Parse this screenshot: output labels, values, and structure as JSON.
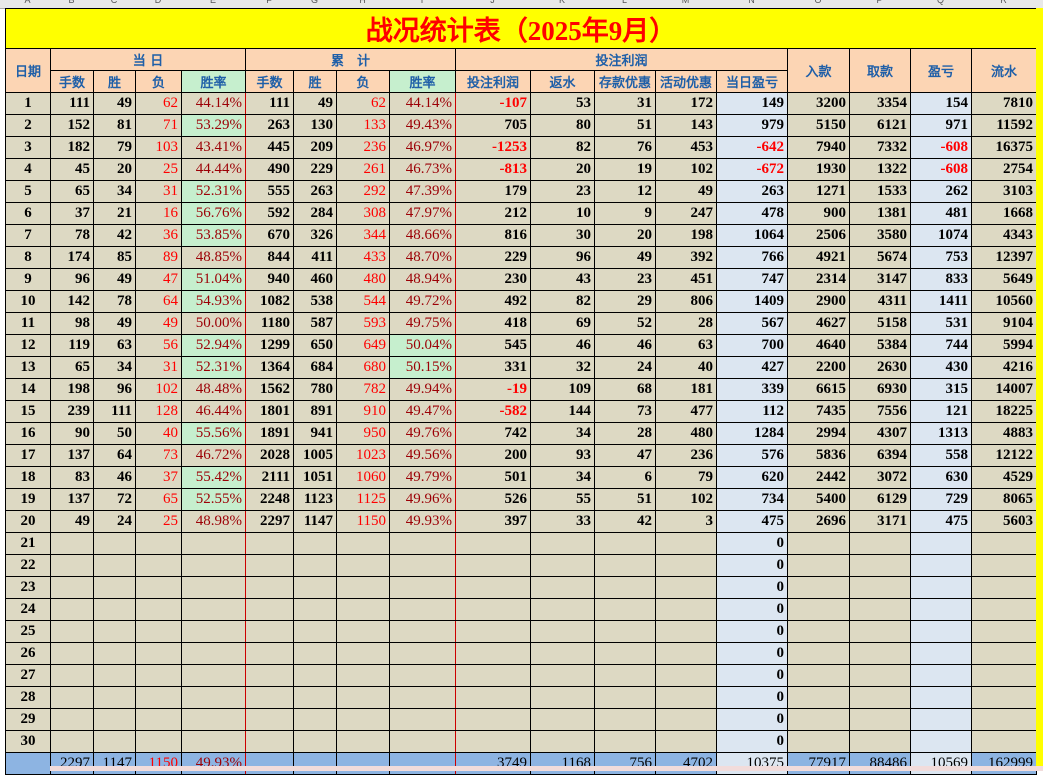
{
  "column_letters": [
    "A",
    "B",
    "C",
    "D",
    "E",
    "F",
    "G",
    "H",
    "I",
    "J",
    "K",
    "L",
    "M",
    "N",
    "O",
    "P",
    "Q",
    "R"
  ],
  "title": "战况统计表（2025年9月）",
  "headers": {
    "date": "日期",
    "today": "当 日",
    "cumulative": "累　计",
    "profit": "投注利润",
    "deposit": "入款",
    "withdraw": "取款",
    "pnl": "盈亏",
    "turnover": "流水",
    "sub": [
      "手数",
      "胜",
      "负",
      "胜率",
      "手数",
      "胜",
      "负",
      "胜率",
      "投注利润",
      "返水",
      "存款优惠",
      "活动优惠",
      "当日盈亏"
    ]
  },
  "rows": [
    [
      1,
      111,
      49,
      62,
      "44.14%",
      111,
      49,
      62,
      "44.14%",
      -107,
      53,
      31,
      172,
      149,
      3200,
      3354,
      154,
      7810
    ],
    [
      2,
      152,
      81,
      71,
      "53.29%",
      263,
      130,
      133,
      "49.43%",
      705,
      80,
      51,
      143,
      979,
      5150,
      6121,
      971,
      11592
    ],
    [
      3,
      182,
      79,
      103,
      "43.41%",
      445,
      209,
      236,
      "46.97%",
      -1253,
      82,
      76,
      453,
      -642,
      7940,
      7332,
      -608,
      16375
    ],
    [
      4,
      45,
      20,
      25,
      "44.44%",
      490,
      229,
      261,
      "46.73%",
      -813,
      20,
      19,
      102,
      -672,
      1930,
      1322,
      -608,
      2754
    ],
    [
      5,
      65,
      34,
      31,
      "52.31%",
      555,
      263,
      292,
      "47.39%",
      179,
      23,
      12,
      49,
      263,
      1271,
      1533,
      262,
      3103
    ],
    [
      6,
      37,
      21,
      16,
      "56.76%",
      592,
      284,
      308,
      "47.97%",
      212,
      10,
      9,
      247,
      478,
      900,
      1381,
      481,
      1668
    ],
    [
      7,
      78,
      42,
      36,
      "53.85%",
      670,
      326,
      344,
      "48.66%",
      816,
      30,
      20,
      198,
      1064,
      2506,
      3580,
      1074,
      4343
    ],
    [
      8,
      174,
      85,
      89,
      "48.85%",
      844,
      411,
      433,
      "48.70%",
      229,
      96,
      49,
      392,
      766,
      4921,
      5674,
      753,
      12397
    ],
    [
      9,
      96,
      49,
      47,
      "51.04%",
      940,
      460,
      480,
      "48.94%",
      230,
      43,
      23,
      451,
      747,
      2314,
      3147,
      833,
      5649
    ],
    [
      10,
      142,
      78,
      64,
      "54.93%",
      1082,
      538,
      544,
      "49.72%",
      492,
      82,
      29,
      806,
      1409,
      2900,
      4311,
      1411,
      10560
    ],
    [
      11,
      98,
      49,
      49,
      "50.00%",
      1180,
      587,
      593,
      "49.75%",
      418,
      69,
      52,
      28,
      567,
      4627,
      5158,
      531,
      9104
    ],
    [
      12,
      119,
      63,
      56,
      "52.94%",
      1299,
      650,
      649,
      "50.04%",
      545,
      46,
      46,
      63,
      700,
      4640,
      5384,
      744,
      5994
    ],
    [
      13,
      65,
      34,
      31,
      "52.31%",
      1364,
      684,
      680,
      "50.15%",
      331,
      32,
      24,
      40,
      427,
      2200,
      2630,
      430,
      4216
    ],
    [
      14,
      198,
      96,
      102,
      "48.48%",
      1562,
      780,
      782,
      "49.94%",
      -19,
      109,
      68,
      181,
      339,
      6615,
      6930,
      315,
      14007
    ],
    [
      15,
      239,
      111,
      128,
      "46.44%",
      1801,
      891,
      910,
      "49.47%",
      -582,
      144,
      73,
      477,
      112,
      7435,
      7556,
      121,
      18225
    ],
    [
      16,
      90,
      50,
      40,
      "55.56%",
      1891,
      941,
      950,
      "49.76%",
      742,
      34,
      28,
      480,
      1284,
      2994,
      4307,
      1313,
      4883
    ],
    [
      17,
      137,
      64,
      73,
      "46.72%",
      2028,
      1005,
      1023,
      "49.56%",
      200,
      93,
      47,
      236,
      576,
      5836,
      6394,
      558,
      12122
    ],
    [
      18,
      83,
      46,
      37,
      "55.42%",
      2111,
      1051,
      1060,
      "49.79%",
      501,
      34,
      6,
      79,
      620,
      2442,
      3072,
      630,
      4529
    ],
    [
      19,
      137,
      72,
      65,
      "52.55%",
      2248,
      1123,
      1125,
      "49.96%",
      526,
      55,
      51,
      102,
      734,
      5400,
      6129,
      729,
      8065
    ],
    [
      20,
      49,
      24,
      25,
      "48.98%",
      2297,
      1147,
      1150,
      "49.93%",
      397,
      33,
      42,
      3,
      475,
      2696,
      3171,
      475,
      5603
    ],
    [
      21,
      "",
      "",
      "",
      "",
      "",
      "",
      "",
      "",
      "",
      "",
      "",
      "",
      0,
      "",
      "",
      "",
      ""
    ],
    [
      22,
      "",
      "",
      "",
      "",
      "",
      "",
      "",
      "",
      "",
      "",
      "",
      "",
      0,
      "",
      "",
      "",
      ""
    ],
    [
      23,
      "",
      "",
      "",
      "",
      "",
      "",
      "",
      "",
      "",
      "",
      "",
      "",
      0,
      "",
      "",
      "",
      ""
    ],
    [
      24,
      "",
      "",
      "",
      "",
      "",
      "",
      "",
      "",
      "",
      "",
      "",
      "",
      0,
      "",
      "",
      "",
      ""
    ],
    [
      25,
      "",
      "",
      "",
      "",
      "",
      "",
      "",
      "",
      "",
      "",
      "",
      "",
      0,
      "",
      "",
      "",
      ""
    ],
    [
      26,
      "",
      "",
      "",
      "",
      "",
      "",
      "",
      "",
      "",
      "",
      "",
      "",
      0,
      "",
      "",
      "",
      ""
    ],
    [
      27,
      "",
      "",
      "",
      "",
      "",
      "",
      "",
      "",
      "",
      "",
      "",
      "",
      0,
      "",
      "",
      "",
      ""
    ],
    [
      28,
      "",
      "",
      "",
      "",
      "",
      "",
      "",
      "",
      "",
      "",
      "",
      "",
      0,
      "",
      "",
      "",
      ""
    ],
    [
      29,
      "",
      "",
      "",
      "",
      "",
      "",
      "",
      "",
      "",
      "",
      "",
      "",
      0,
      "",
      "",
      "",
      ""
    ],
    [
      30,
      "",
      "",
      "",
      "",
      "",
      "",
      "",
      "",
      "",
      "",
      "",
      "",
      0,
      "",
      "",
      "",
      ""
    ]
  ],
  "totals": [
    "",
    2297,
    1147,
    1150,
    "49.93%",
    "",
    "",
    "",
    "",
    3749,
    1168,
    756,
    4702,
    10375,
    77917,
    88486,
    10569,
    162999
  ],
  "colors": {
    "title_bg": "#ffff00",
    "title_text": "#ff0000",
    "header_bg": "#ffd5b4",
    "header_text": "#1f5fa8",
    "cell_bg": "#ddd9c3",
    "blue_col": "#dce6f1",
    "win_rate_high": "#c6efce",
    "negative": "#ff0000",
    "footer_bg": "#8db4e2"
  }
}
